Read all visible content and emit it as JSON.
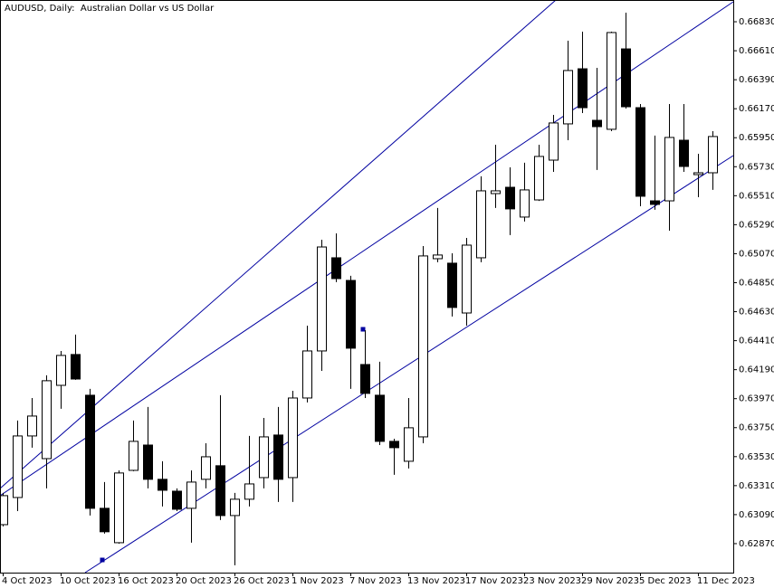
{
  "chart_data": {
    "type": "candlestick",
    "title": "AUDUSD, Daily:  Australian Dollar vs US Dollar",
    "categories": [
      "4 Oct 2023",
      null,
      null,
      null,
      "10 Oct 2023",
      null,
      null,
      null,
      "16 Oct 2023",
      null,
      null,
      null,
      "20 Oct 2023",
      null,
      null,
      null,
      "26 Oct 2023",
      null,
      null,
      null,
      "1 Nov 2023",
      null,
      null,
      null,
      "7 Nov 2023",
      null,
      null,
      null,
      "13 Nov 2023",
      null,
      null,
      null,
      "17 Nov 2023",
      null,
      null,
      null,
      "23 Nov 2023",
      null,
      null,
      null,
      "29 Nov 2023",
      null,
      null,
      null,
      "5 Dec 2023",
      null,
      null,
      null,
      "11 Dec 2023",
      null
    ],
    "open": [
      0.63014,
      0.6322,
      0.63687,
      0.63515,
      0.64071,
      0.64305,
      0.63996,
      0.63138,
      0.62877,
      0.63426,
      0.63618,
      0.63358,
      0.63268,
      0.63138,
      0.63358,
      0.63461,
      0.63083,
      0.63207,
      0.63371,
      0.63694,
      0.63371,
      0.63975,
      0.64332,
      0.65039,
      0.64867,
      0.64229,
      0.63996,
      0.63646,
      0.63495,
      0.6368,
      0.65032,
      0.64998,
      0.6462,
      0.65039,
      0.65526,
      0.65574,
      0.65348,
      0.65478,
      0.6578,
      0.66055,
      0.66473,
      0.66082,
      0.66014,
      0.66624,
      0.66178,
      0.65471,
      0.65471,
      0.65931,
      0.6567,
      0.65684
    ],
    "high": [
      0.63255,
      0.63804,
      0.63975,
      0.64147,
      0.64332,
      0.64456,
      0.64044,
      0.63337,
      0.63426,
      0.63804,
      0.63907,
      0.63495,
      0.63289,
      0.63426,
      0.63632,
      0.63996,
      0.63255,
      0.63687,
      0.63824,
      0.63907,
      0.6403,
      0.64524,
      0.65176,
      0.65224,
      0.64902,
      0.6449,
      0.6425,
      0.63666,
      0.63975,
      0.65128,
      0.65417,
      0.65073,
      0.6519,
      0.65657,
      0.65897,
      0.65725,
      0.6576,
      0.65897,
      0.66123,
      0.66686,
      0.66755,
      0.6648,
      0.66755,
      0.66899,
      0.66206,
      0.65966,
      0.66206,
      0.66206,
      0.65828,
      0.66
    ],
    "low": [
      0.63001,
      0.63117,
      0.63598,
      0.63289,
      0.63893,
      0.64113,
      0.63083,
      0.62946,
      0.6287,
      0.6342,
      0.63289,
      0.63152,
      0.63117,
      0.62877,
      0.63289,
      0.63049,
      0.62706,
      0.63152,
      0.63289,
      0.63186,
      0.63186,
      0.63941,
      0.64181,
      0.64854,
      0.64044,
      0.63975,
      0.63618,
      0.63392,
      0.6344,
      0.63632,
      0.65005,
      0.64593,
      0.64524,
      0.65005,
      0.65417,
      0.65211,
      0.65314,
      0.6547,
      0.65691,
      0.65931,
      0.66137,
      0.65705,
      0.66,
      0.66171,
      0.6543,
      0.65403,
      0.65245,
      0.65691,
      0.65499,
      0.65554
    ],
    "close": [
      0.63234,
      0.63687,
      0.63838,
      0.64106,
      0.64298,
      0.64119,
      0.63138,
      0.6296,
      0.63406,
      0.63646,
      0.63358,
      0.63275,
      0.63131,
      0.63337,
      0.63529,
      0.63083,
      0.63207,
      0.63323,
      0.6368,
      0.63358,
      0.63975,
      0.64332,
      0.65121,
      0.64881,
      0.64353,
      0.6401,
      0.63646,
      0.63598,
      0.63749,
      0.65053,
      0.6506,
      0.64662,
      0.65135,
      0.65547,
      0.65547,
      0.6541,
      0.65554,
      0.65808,
      0.66062,
      0.6646,
      0.66178,
      0.66034,
      0.66748,
      0.66185,
      0.65506,
      0.65444,
      0.65952,
      0.65732,
      0.65684,
      0.65959
    ],
    "up_color": "#ffffff",
    "down_color": "#000000",
    "ylim": [
      0.6265,
      0.66995
    ],
    "yticks": [
      {
        "value": 0.6287,
        "label": "0.62870"
      },
      {
        "value": 0.6309,
        "label": "0.63090"
      },
      {
        "value": 0.6331,
        "label": "0.63310"
      },
      {
        "value": 0.6353,
        "label": "0.63530"
      },
      {
        "value": 0.6375,
        "label": "0.63750"
      },
      {
        "value": 0.6397,
        "label": "0.63970"
      },
      {
        "value": 0.6419,
        "label": "0.64190"
      },
      {
        "value": 0.6441,
        "label": "0.64410"
      },
      {
        "value": 0.6463,
        "label": "0.64630"
      },
      {
        "value": 0.6485,
        "label": "0.64850"
      },
      {
        "value": 0.6507,
        "label": "0.65070"
      },
      {
        "value": 0.6529,
        "label": "0.65290"
      },
      {
        "value": 0.6551,
        "label": "0.65510"
      },
      {
        "value": 0.6573,
        "label": "0.65730"
      },
      {
        "value": 0.6595,
        "label": "0.65950"
      },
      {
        "value": 0.6617,
        "label": "0.66170"
      },
      {
        "value": 0.6639,
        "label": "0.66390"
      },
      {
        "value": 0.6661,
        "label": "0.66610"
      },
      {
        "value": 0.6683,
        "label": "0.66830"
      }
    ],
    "grid": false
  }
}
